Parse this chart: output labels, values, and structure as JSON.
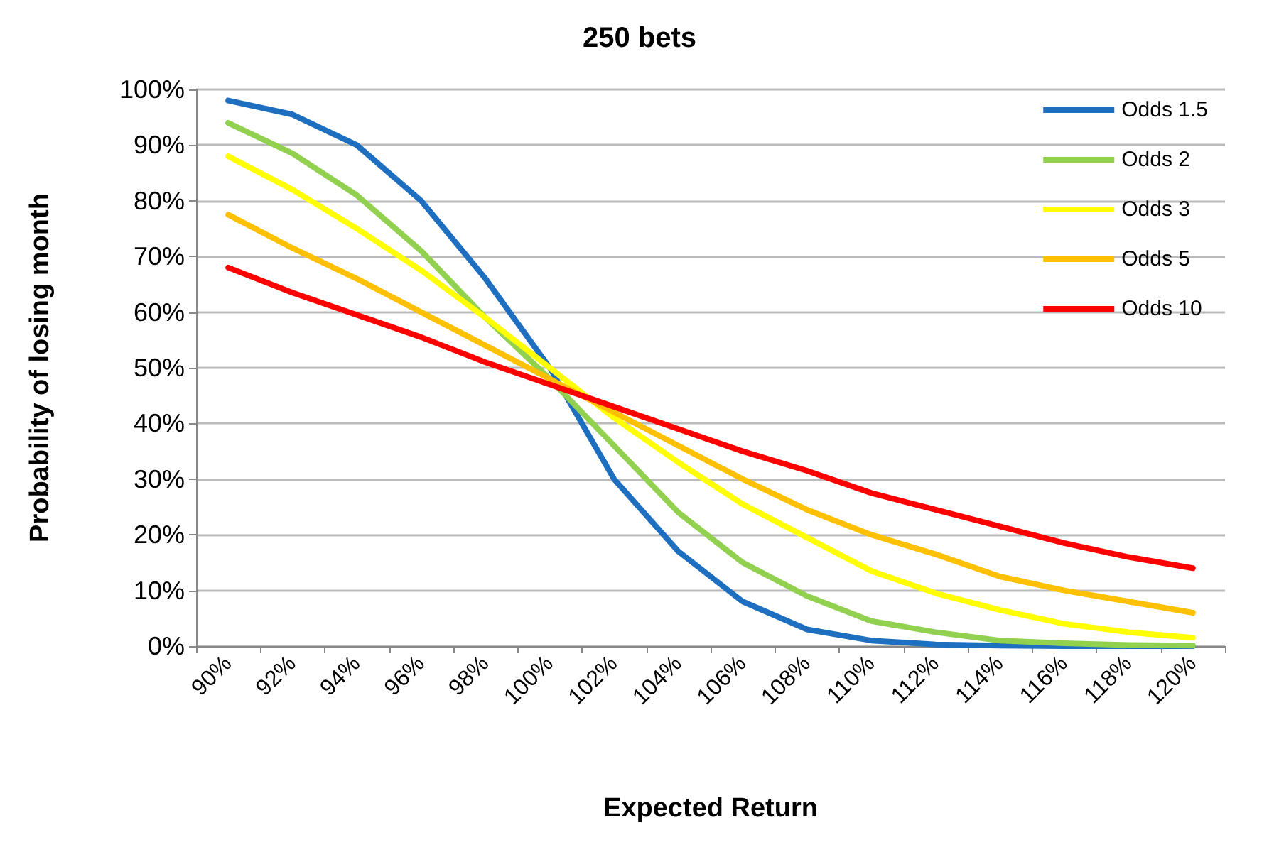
{
  "chart_data": {
    "type": "line",
    "title": "250 bets",
    "xlabel": "Expected Return",
    "ylabel": "Probability of losing month",
    "categories": [
      "90%",
      "92%",
      "94%",
      "96%",
      "98%",
      "100%",
      "102%",
      "104%",
      "106%",
      "108%",
      "110%",
      "112%",
      "114%",
      "116%",
      "118%",
      "120%"
    ],
    "series": [
      {
        "name": "Odds 1.5",
        "color": "#1f6fc0",
        "values": [
          98,
          95.5,
          90,
          80,
          66,
          50,
          30,
          17,
          8,
          3,
          1,
          0.3,
          0.1,
          0,
          0,
          0
        ]
      },
      {
        "name": "Odds 2",
        "color": "#92d050",
        "values": [
          94,
          88.5,
          81,
          71,
          59,
          48,
          36,
          24,
          15,
          9,
          4.5,
          2.5,
          1,
          0.5,
          0.2,
          0.1
        ]
      },
      {
        "name": "Odds 3",
        "color": "#ffff00",
        "values": [
          88,
          82,
          75,
          67.5,
          59,
          50,
          41,
          33,
          25.5,
          19.5,
          13.5,
          9.5,
          6.5,
          4,
          2.5,
          1.5
        ]
      },
      {
        "name": "Odds 5",
        "color": "#ffc000",
        "values": [
          77.5,
          71.5,
          66,
          60,
          54,
          48,
          42,
          36,
          30,
          24.5,
          20,
          16.5,
          12.5,
          10,
          8,
          6
        ]
      },
      {
        "name": "Odds 10",
        "color": "#ff0000",
        "values": [
          68,
          63.5,
          59.5,
          55.5,
          51,
          47,
          43,
          39,
          35,
          31.5,
          27.5,
          24.5,
          21.5,
          18.5,
          16,
          14
        ]
      }
    ],
    "ylim": [
      0,
      100
    ],
    "yticks": [
      {
        "value": 0,
        "label": "0%"
      },
      {
        "value": 10,
        "label": "10%"
      },
      {
        "value": 20,
        "label": "20%"
      },
      {
        "value": 30,
        "label": "30%"
      },
      {
        "value": 40,
        "label": "40%"
      },
      {
        "value": 50,
        "label": "50%"
      },
      {
        "value": 60,
        "label": "60%"
      },
      {
        "value": 70,
        "label": "70%"
      },
      {
        "value": 80,
        "label": "80%"
      },
      {
        "value": 90,
        "label": "90%"
      },
      {
        "value": 100,
        "label": "100%"
      }
    ],
    "grid": "y",
    "legend": "top right",
    "marker": "none",
    "line_style": "solid"
  }
}
